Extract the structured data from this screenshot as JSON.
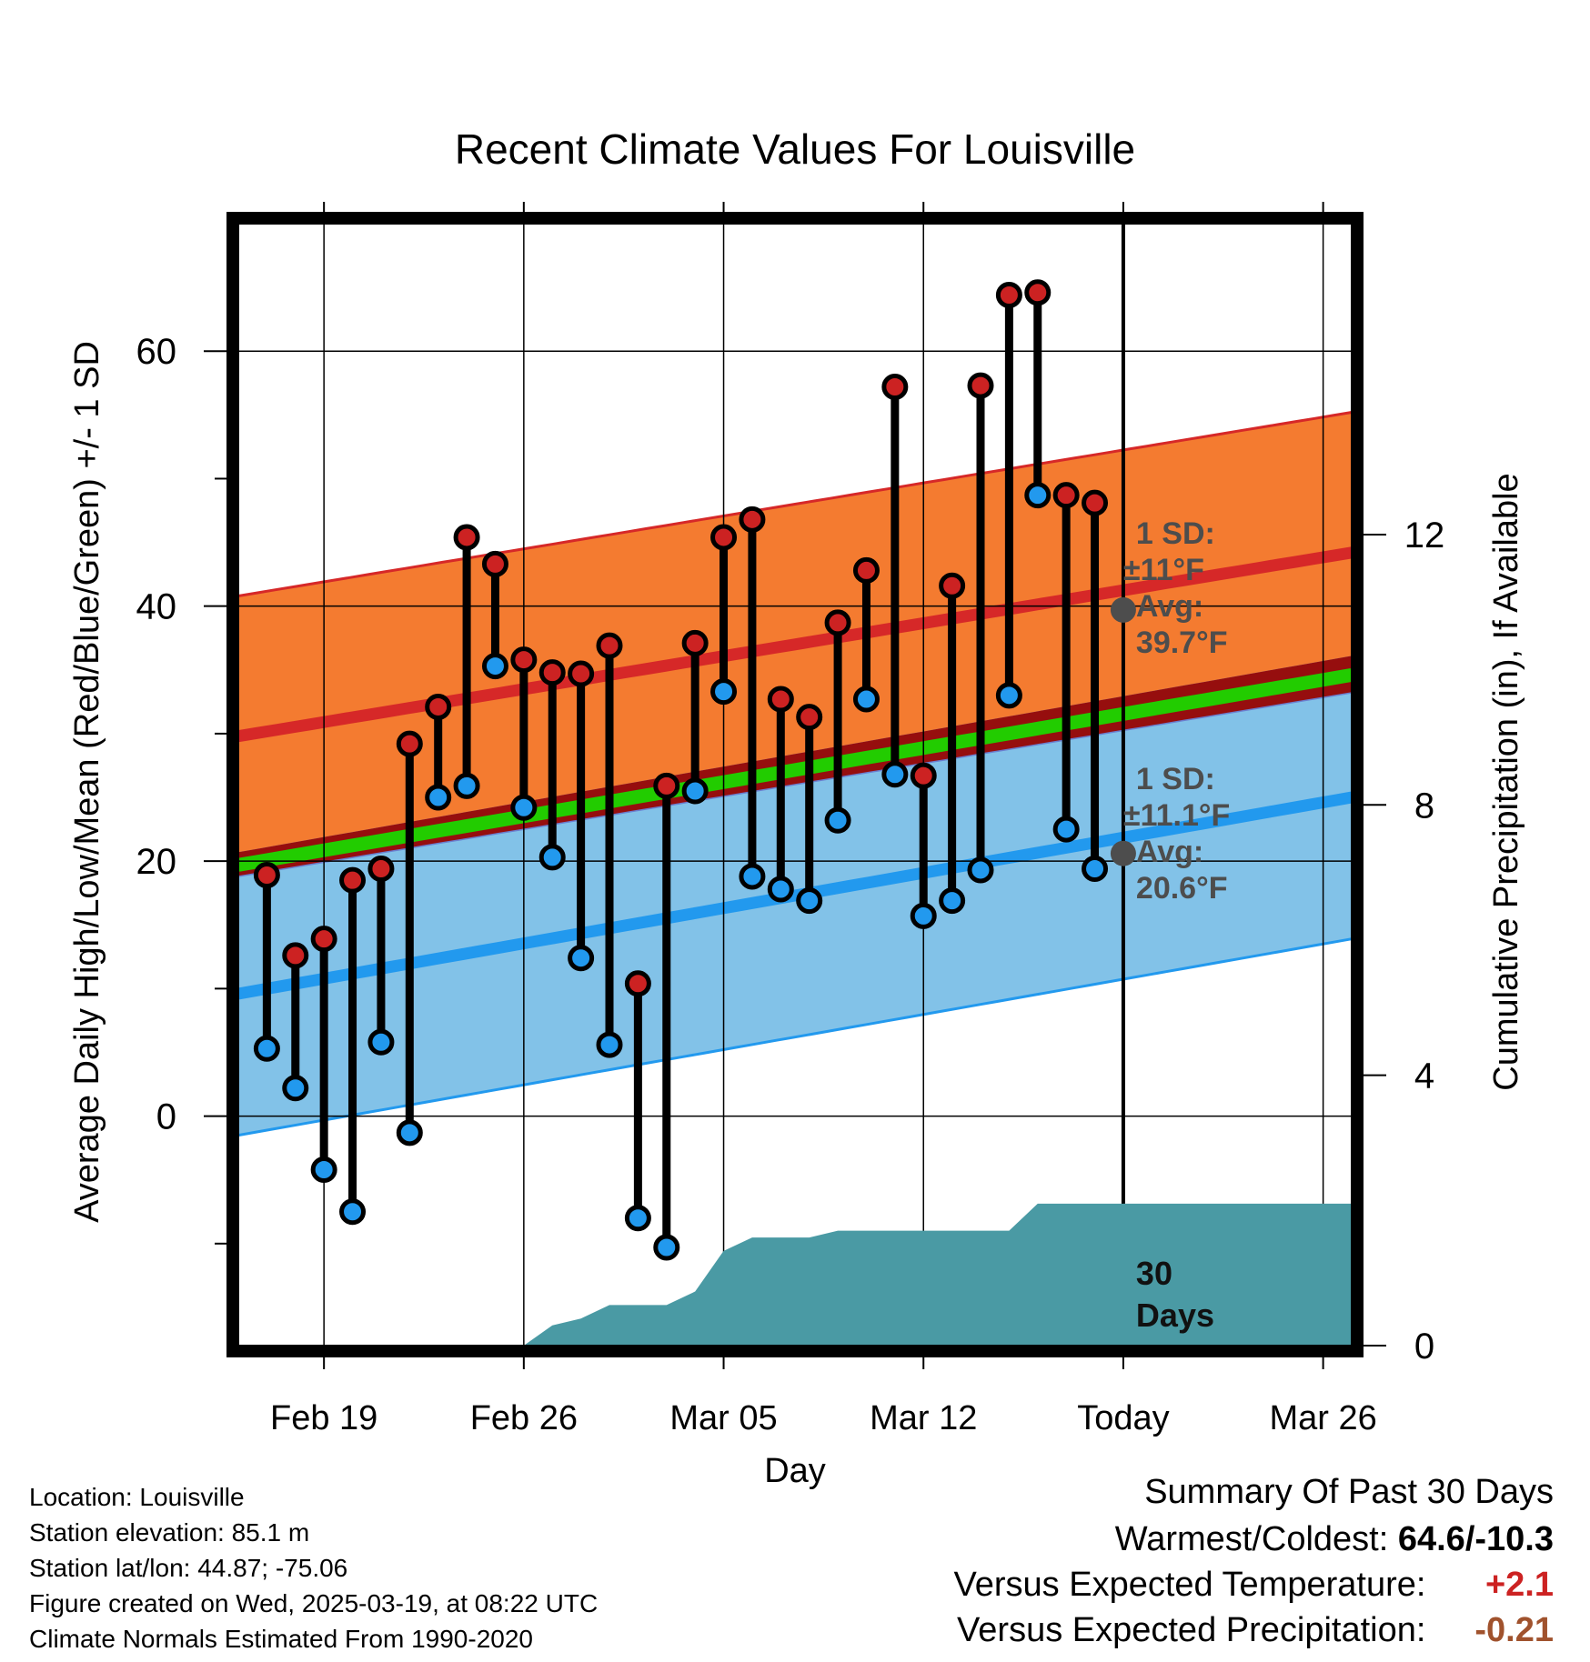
{
  "chart_data": {
    "type": "line",
    "title": "Recent Climate Values For Louisville",
    "xlabel": "Day",
    "ylabel": "Average Daily High/Low/Mean (Red/Blue/Green) +/- 1 SD",
    "y2label": "Cumulative Precipitation (in), If Available",
    "ylim": [
      -18,
      70
    ],
    "y2lim": [
      0,
      16.6
    ],
    "y_ticks": [
      "0",
      "20",
      "40",
      "60"
    ],
    "y2_ticks": [
      "0",
      "4",
      "8",
      "12"
    ],
    "x_ticks": [
      {
        "label": "Feb 19",
        "day": 3
      },
      {
        "label": "Feb 26",
        "day": 10
      },
      {
        "label": "Mar 05",
        "day": 17
      },
      {
        "label": "Mar 12",
        "day": 24
      },
      {
        "label": "Today",
        "day": 31
      },
      {
        "label": "Mar 26",
        "day": 38
      }
    ],
    "today_day": 31,
    "series": [
      {
        "name": "High",
        "color": "#cc2222",
        "values": [
          18.9,
          12.6,
          13.9,
          18.5,
          19.4,
          29.2,
          32.1,
          45.4,
          43.3,
          35.8,
          34.8,
          34.7,
          36.9,
          10.4,
          25.9,
          37.1,
          45.4,
          46.8,
          32.7,
          31.3,
          38.7,
          42.8,
          57.2,
          26.7,
          41.6,
          57.3,
          64.4,
          64.6,
          48.7,
          48.1
        ]
      },
      {
        "name": "Low",
        "color": "#2299ee",
        "values": [
          5.3,
          2.2,
          -4.2,
          -7.5,
          5.8,
          -1.3,
          25.0,
          25.9,
          35.3,
          24.2,
          20.3,
          12.4,
          5.6,
          -8.0,
          -10.3,
          25.5,
          33.3,
          18.8,
          17.8,
          16.9,
          23.2,
          32.7,
          26.8,
          15.7,
          16.9,
          19.3,
          33.0,
          48.7,
          22.5,
          19.4
        ]
      },
      {
        "name": "Cumulative Precipitation",
        "color": "#4a9aa4",
        "values": [
          0,
          0,
          0,
          0,
          0,
          0,
          0,
          0,
          0,
          0,
          0.3,
          0.4,
          0.6,
          0.6,
          0.6,
          0.8,
          1.4,
          1.6,
          1.6,
          1.6,
          1.7,
          1.7,
          1.7,
          1.7,
          1.7,
          1.7,
          1.7,
          2.1,
          2.1,
          2.1,
          2.1
        ]
      }
    ],
    "normals": {
      "day_start": 0,
      "day_end": 39,
      "high_avg": [
        29.8,
        44.2
      ],
      "high_sd": 11,
      "low_avg": [
        9.6,
        25.0
      ],
      "low_sd": 11.1,
      "mean_avg": [
        19.7,
        34.6
      ]
    },
    "colors": {
      "high_band": "#f47b30",
      "high_line": "#d62828",
      "low_band": "#82c2e8",
      "low_line": "#2299ee",
      "mean_line": "#22cc00",
      "overlap_band": "#960e0e",
      "precip": "#4a9aa4",
      "marker": "#4d4d4d"
    },
    "annotations": {
      "high": {
        "sd_label": "1 SD:",
        "sd_value": "±11°F",
        "avg_label": "Avg:",
        "avg_value": "39.7°F",
        "avg_num": 39.7
      },
      "low": {
        "sd_label": "1 SD:",
        "sd_value": "±11.1°F",
        "avg_label": "Avg:",
        "avg_value": "20.6°F",
        "avg_num": 20.6
      },
      "precip": {
        "line1": "30",
        "line2": "Days"
      }
    }
  },
  "station": {
    "location": "Location: Louisville",
    "elevation": "Station elevation: 85.1 m",
    "latlon": "Station lat/lon: 44.87; -75.06",
    "created": "Figure created on Wed, 2025-03-19, at 08:22 UTC",
    "normals": "Climate Normals Estimated From 1990-2020"
  },
  "summary": {
    "title": "Summary Of Past 30 Days",
    "warm_cold_label": "Warmest/Coldest:",
    "warm_cold_value": "64.6/-10.3",
    "temp_label": "Versus Expected Temperature:",
    "temp_value": "+2.1",
    "temp_color": "#cc2222",
    "precip_label": "Versus Expected Precipitation:",
    "precip_value": "-0.21",
    "precip_color": "#a0522d"
  }
}
